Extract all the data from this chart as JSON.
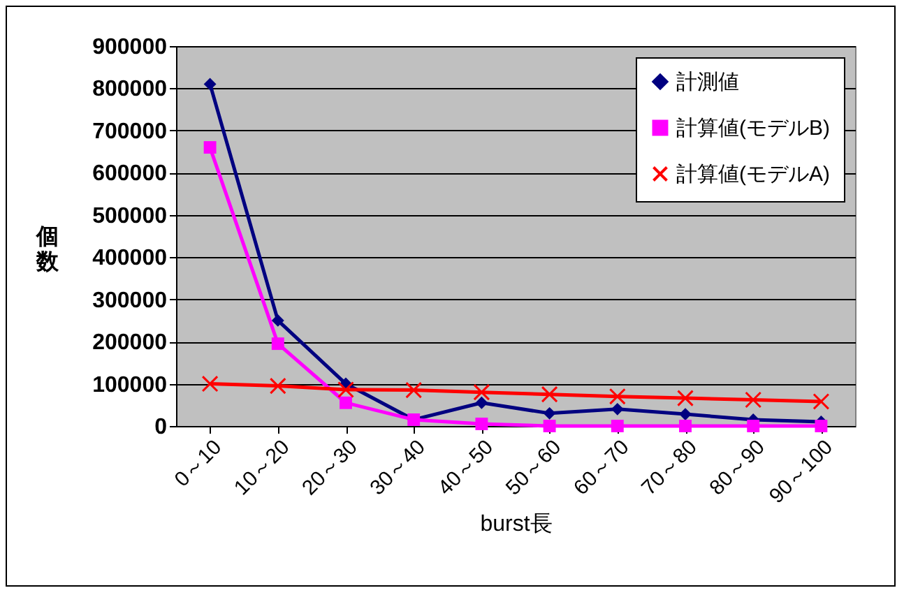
{
  "chart_data": {
    "type": "line",
    "xlabel": "burst長",
    "ylabel": "個数",
    "categories": [
      "0～10",
      "10～20",
      "20～30",
      "30～40",
      "40～50",
      "50～60",
      "60～70",
      "70～80",
      "80～90",
      "90～100"
    ],
    "series": [
      {
        "name": "計測値",
        "color": "#000080",
        "marker": "diamond",
        "values": [
          810000,
          250000,
          100000,
          15000,
          55000,
          30000,
          40000,
          28000,
          15000,
          10000
        ]
      },
      {
        "name": "計算値(モデルB)",
        "color": "#ff00ff",
        "marker": "square",
        "values": [
          660000,
          195000,
          55000,
          15000,
          5000,
          0,
          0,
          0,
          0,
          0
        ]
      },
      {
        "name": "計算値(モデルA)",
        "color": "#ff0000",
        "marker": "cross",
        "values": [
          100000,
          95000,
          86000,
          85000,
          80000,
          75000,
          70000,
          66000,
          62000,
          58000
        ]
      }
    ],
    "ylim": [
      0,
      900000
    ],
    "yticks": [
      0,
      100000,
      200000,
      300000,
      400000,
      500000,
      600000,
      700000,
      800000,
      900000
    ],
    "grid": "y",
    "legend": "top right",
    "line_style": "solid"
  }
}
